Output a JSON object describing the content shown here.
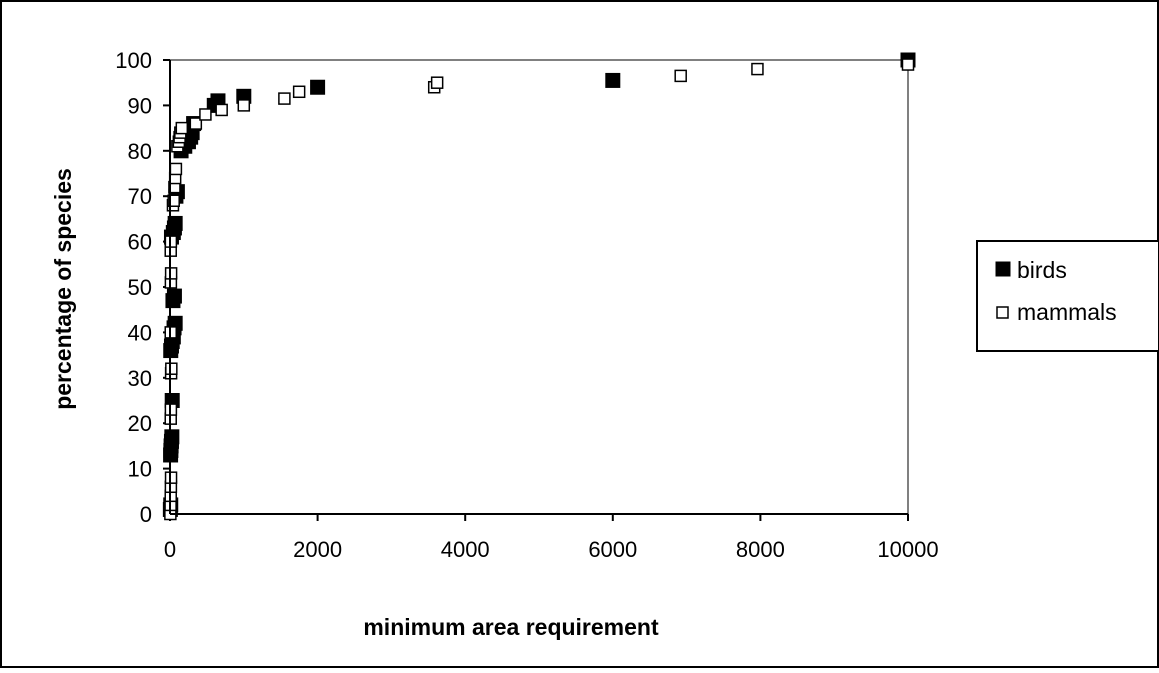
{
  "chart_data": {
    "type": "scatter",
    "title": "",
    "xlabel": "minimum area requirement",
    "ylabel": "percentage of species",
    "xlim": [
      0,
      10000
    ],
    "ylim": [
      0,
      100
    ],
    "x_ticks": [
      0,
      2000,
      4000,
      6000,
      8000,
      10000
    ],
    "y_ticks": [
      0,
      10,
      20,
      30,
      40,
      50,
      60,
      70,
      80,
      90,
      100
    ],
    "x_tick_labels": [
      "0",
      "2000",
      "4000",
      "6000",
      "8000",
      "10000"
    ],
    "y_tick_labels": [
      "0",
      "10",
      "20",
      "30",
      "40",
      "50",
      "60",
      "70",
      "80",
      "90",
      "100"
    ],
    "grid": false,
    "legend_position": "right",
    "series": [
      {
        "name": "birds",
        "marker": "filled-square",
        "color": "#000000",
        "points": [
          [
            5,
            1
          ],
          [
            10,
            2
          ],
          [
            8,
            13
          ],
          [
            12,
            14
          ],
          [
            15,
            15
          ],
          [
            20,
            16
          ],
          [
            25,
            17
          ],
          [
            30,
            25
          ],
          [
            10,
            36
          ],
          [
            20,
            37
          ],
          [
            30,
            38
          ],
          [
            45,
            39
          ],
          [
            55,
            41
          ],
          [
            70,
            42
          ],
          [
            40,
            47
          ],
          [
            60,
            48
          ],
          [
            20,
            61
          ],
          [
            45,
            62
          ],
          [
            60,
            63
          ],
          [
            70,
            64
          ],
          [
            80,
            70
          ],
          [
            100,
            71
          ],
          [
            150,
            80
          ],
          [
            200,
            81
          ],
          [
            250,
            82
          ],
          [
            280,
            83
          ],
          [
            300,
            84
          ],
          [
            320,
            86
          ],
          [
            600,
            90
          ],
          [
            650,
            91
          ],
          [
            1000,
            92
          ],
          [
            2000,
            94
          ],
          [
            6000,
            95.5
          ],
          [
            10000,
            100
          ]
        ]
      },
      {
        "name": "mammals",
        "marker": "open-square",
        "color": "#000000",
        "points": [
          [
            5,
            0
          ],
          [
            8,
            2
          ],
          [
            10,
            4
          ],
          [
            12,
            6
          ],
          [
            14,
            8
          ],
          [
            10,
            21
          ],
          [
            12,
            23
          ],
          [
            15,
            31
          ],
          [
            18,
            32
          ],
          [
            10,
            40
          ],
          [
            12,
            51
          ],
          [
            15,
            53
          ],
          [
            10,
            58
          ],
          [
            12,
            60
          ],
          [
            40,
            68
          ],
          [
            50,
            69
          ],
          [
            60,
            72
          ],
          [
            70,
            74
          ],
          [
            80,
            76
          ],
          [
            100,
            81
          ],
          [
            120,
            82
          ],
          [
            130,
            83
          ],
          [
            140,
            84
          ],
          [
            160,
            85
          ],
          [
            350,
            86
          ],
          [
            480,
            88
          ],
          [
            700,
            89
          ],
          [
            1000,
            90
          ],
          [
            1550,
            91.5
          ],
          [
            1750,
            93
          ],
          [
            3580,
            94
          ],
          [
            3620,
            95
          ],
          [
            6920,
            96.5
          ],
          [
            7960,
            98
          ],
          [
            10000,
            99
          ]
        ]
      }
    ]
  }
}
